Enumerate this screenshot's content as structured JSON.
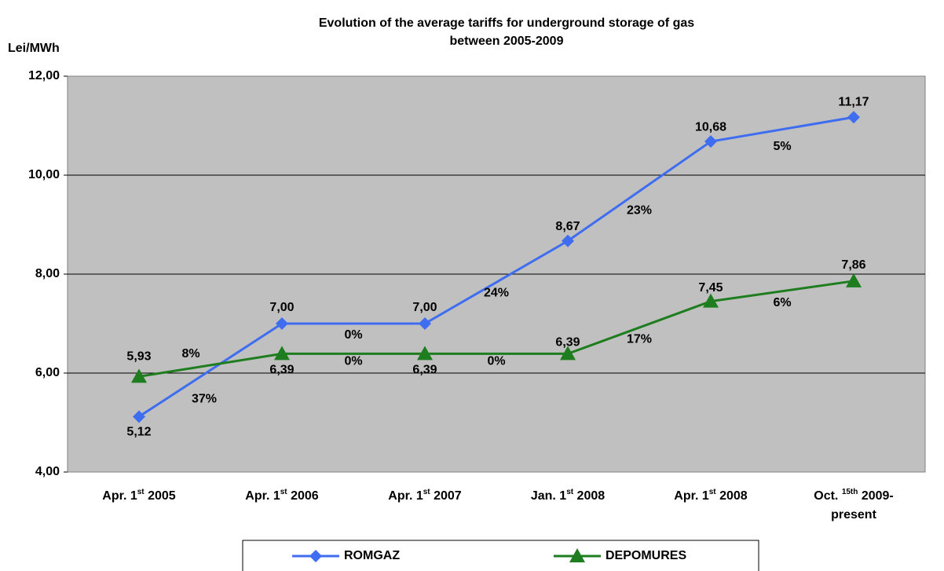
{
  "chart_data": {
    "type": "line",
    "title": [
      "Evolution of the average tariffs for underground storage of gas",
      "between 2005-2009"
    ],
    "y_label": "Lei/MWh",
    "categories": [
      [
        "Apr. 1",
        "st",
        " 2005"
      ],
      [
        "Apr. 1",
        "st",
        " 2006"
      ],
      [
        "Apr. 1",
        "st",
        " 2007"
      ],
      [
        "Jan. 1",
        "st",
        " 2008"
      ],
      [
        "Apr. 1",
        "st",
        " 2008"
      ],
      [
        "Oct. ",
        "15th",
        " 2009-",
        "present"
      ]
    ],
    "series": [
      {
        "name": "ROMGAZ",
        "color": "#3f6df0",
        "marker": "diamond",
        "values": [
          5.12,
          7.0,
          7.0,
          8.67,
          10.68,
          11.17
        ],
        "value_labels": [
          "5,12",
          "7,00",
          "7,00",
          "8,67",
          "10,68",
          "11,17"
        ],
        "change_labels": [
          "37%",
          "0%",
          "24%",
          "23%",
          "5%"
        ]
      },
      {
        "name": "DEPOMURES",
        "color": "#1e7d1e",
        "marker": "triangle",
        "values": [
          5.93,
          6.39,
          6.39,
          6.39,
          7.45,
          7.86
        ],
        "value_labels": [
          "5,93",
          "6,39",
          "6,39",
          "6,39",
          "7,45",
          "7,86"
        ],
        "change_labels": [
          "8%",
          "0%",
          "0%",
          "17%",
          "6%"
        ]
      }
    ],
    "ylim": [
      4,
      12
    ],
    "yticks": [
      {
        "value": 4,
        "label": "4,00"
      },
      {
        "value": 6,
        "label": "6,00"
      },
      {
        "value": 8,
        "label": "8,00"
      },
      {
        "value": 10,
        "label": "10,00"
      },
      {
        "value": 12,
        "label": "12,00"
      }
    ],
    "grid": true,
    "legend": "bottom"
  }
}
